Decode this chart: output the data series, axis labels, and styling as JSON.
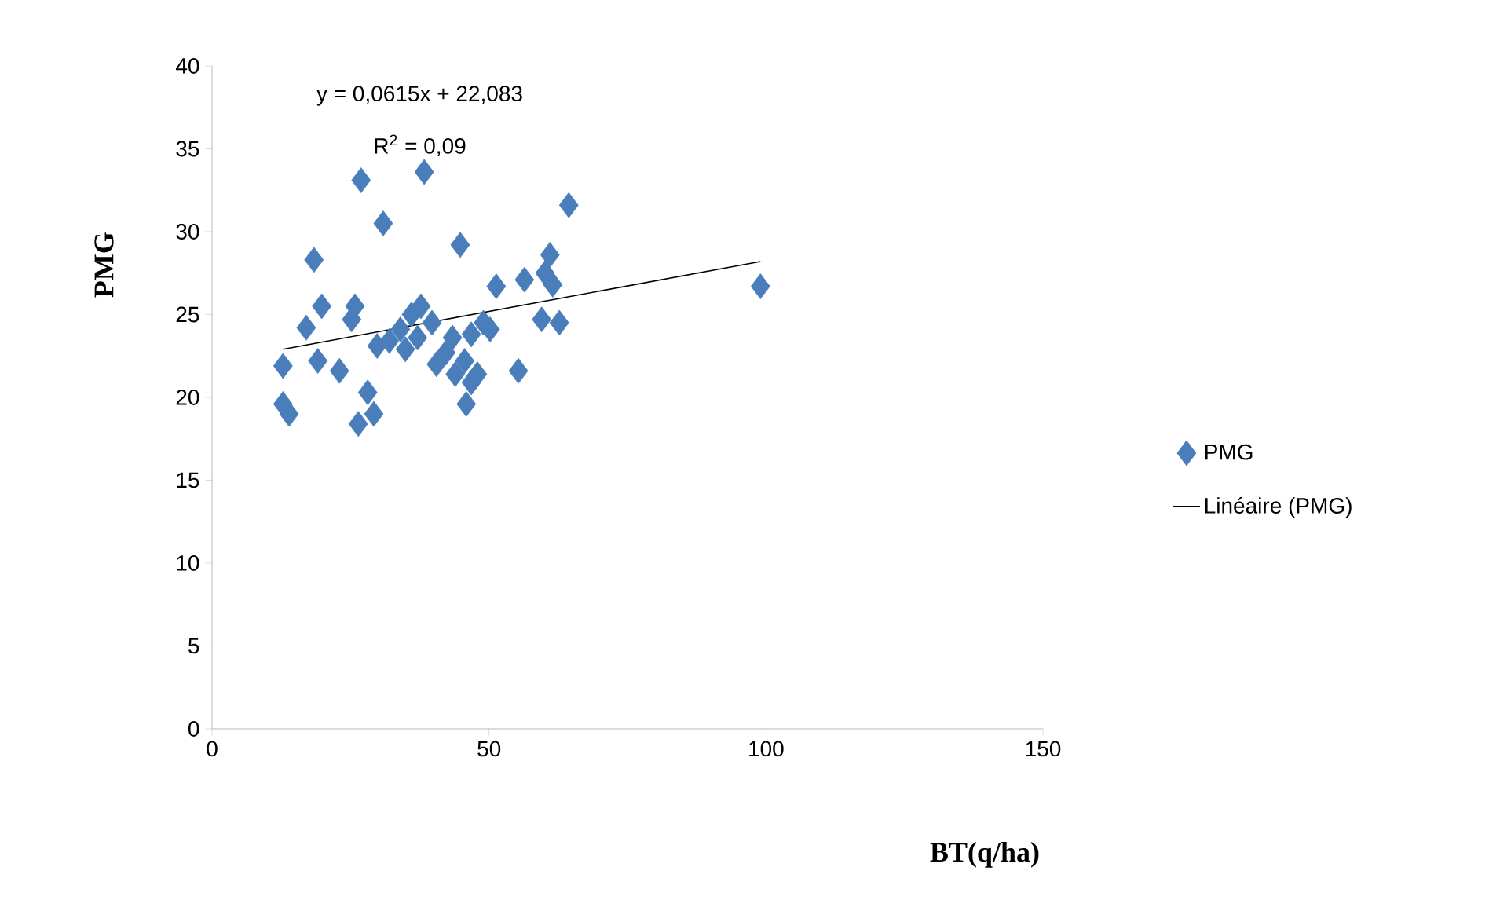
{
  "chart_data": {
    "type": "scatter",
    "xlabel": "BT(q/ha)",
    "ylabel": "PMG",
    "xlim": [
      0,
      150
    ],
    "xticks": [
      0,
      50,
      100,
      150
    ],
    "ylim": [
      0,
      40
    ],
    "yticks": [
      0,
      5,
      10,
      15,
      20,
      25,
      30,
      35,
      40
    ],
    "grid": false,
    "legend": "right",
    "annotations": [
      "y = 0,0615x + 22,083",
      "R$^{2}$ = 0,09"
    ],
    "series": [
      {
        "name": "PMG",
        "marker": "diamond",
        "color": "#4a7ebb",
        "x": [
          12.8,
          12.8,
          13.9,
          17.0,
          18.4,
          19.1,
          19.8,
          23.0,
          25.8,
          25.2,
          26.9,
          26.4,
          28.1,
          29.2,
          30.9,
          29.8,
          32.0,
          34.0,
          34.9,
          36.0,
          37.7,
          38.3,
          37.1,
          39.7,
          40.5,
          42.2,
          43.4,
          44.8,
          43.9,
          45.6,
          45.9,
          46.8,
          47.9,
          46.8,
          49.0,
          50.2,
          51.3,
          55.3,
          56.4,
          60.1,
          61.0,
          61.5,
          59.5,
          62.7,
          64.4,
          99.0
        ],
        "values": [
          21.9,
          19.6,
          19.0,
          24.2,
          28.3,
          22.2,
          25.5,
          21.6,
          25.5,
          24.7,
          33.1,
          18.4,
          20.3,
          19.0,
          30.5,
          23.1,
          23.4,
          24.1,
          22.9,
          25.0,
          25.5,
          33.6,
          23.6,
          24.5,
          22.0,
          22.7,
          23.6,
          29.2,
          21.4,
          22.2,
          19.6,
          20.9,
          21.4,
          23.8,
          24.5,
          24.1,
          26.7,
          21.6,
          27.1,
          27.5,
          28.6,
          26.8,
          24.7,
          24.5,
          31.6,
          26.7
        ]
      },
      {
        "name": "Linéaire (PMG)",
        "type": "line",
        "color": "#000000",
        "x": [
          12.8,
          99.0
        ],
        "values": [
          22.9,
          28.2
        ]
      }
    ]
  }
}
